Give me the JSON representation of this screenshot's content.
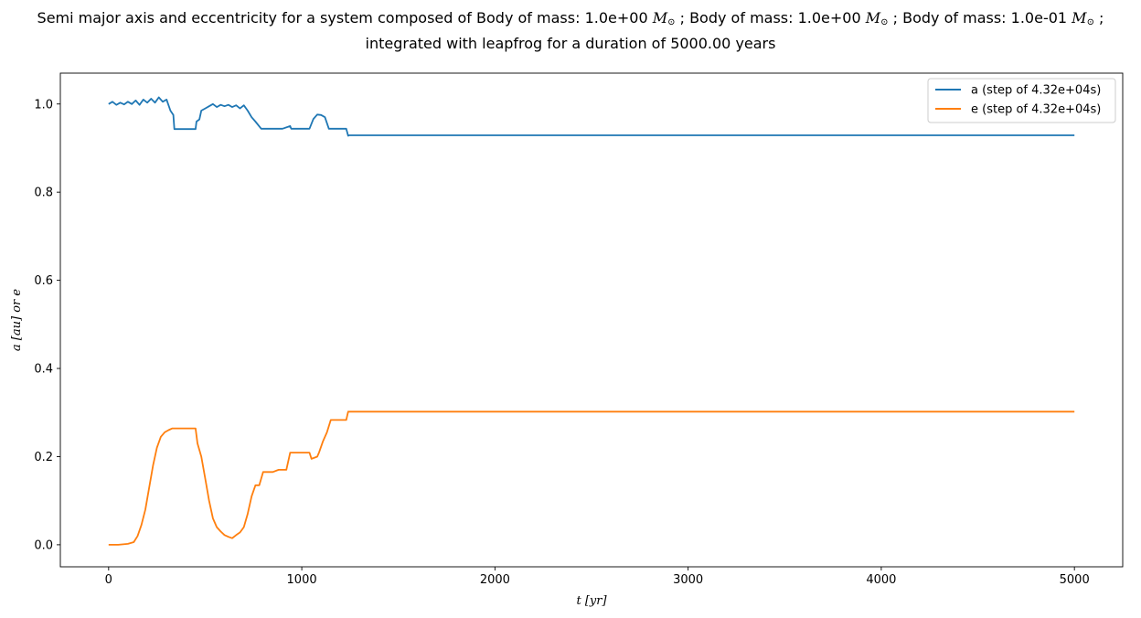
{
  "chart_data": {
    "type": "line",
    "title_parts": {
      "prefix": "Semi major axis and eccentricity for a system composed of",
      "body_label": "Body of mass:",
      "masses": [
        "1.0e+00",
        "1.0e+00",
        "1.0e-01"
      ],
      "mass_unit": "M",
      "mass_unit_sub": "⊙",
      "separator": ";",
      "line2": "integrated with leapfrog for a duration of 5000.00 years"
    },
    "xlabel": "t [yr]",
    "ylabel": "a [au] or e",
    "xlim": [
      -250,
      5250
    ],
    "ylim": [
      -0.05,
      1.07
    ],
    "xticks": [
      0,
      1000,
      2000,
      3000,
      4000,
      5000
    ],
    "yticks": [
      0.0,
      0.2,
      0.4,
      0.6,
      0.8,
      1.0
    ],
    "xtick_labels": [
      "0",
      "1000",
      "2000",
      "3000",
      "4000",
      "5000"
    ],
    "ytick_labels": [
      "0.0",
      "0.2",
      "0.4",
      "0.6",
      "0.8",
      "1.0"
    ],
    "grid": false,
    "legend_position": "top-right",
    "series": [
      {
        "name": "a (step of 4.32e+04s)",
        "color": "#1f77b4",
        "x": [
          0,
          20,
          40,
          60,
          80,
          100,
          120,
          140,
          160,
          180,
          200,
          220,
          240,
          260,
          280,
          300,
          320,
          335,
          340,
          360,
          400,
          450,
          455,
          470,
          480,
          500,
          520,
          540,
          560,
          580,
          600,
          620,
          640,
          660,
          680,
          700,
          720,
          740,
          760,
          790,
          800,
          850,
          880,
          900,
          940,
          945,
          1000,
          1040,
          1060,
          1080,
          1100,
          1120,
          1140,
          1150,
          1170,
          1200,
          1230,
          1240,
          1245,
          1300,
          1500,
          2000,
          3000,
          4000,
          5000
        ],
        "y": [
          1.0,
          1.005,
          0.998,
          1.003,
          0.999,
          1.005,
          1.0,
          1.008,
          0.998,
          1.01,
          1.003,
          1.012,
          1.003,
          1.015,
          1.005,
          1.01,
          0.985,
          0.975,
          0.943,
          0.943,
          0.943,
          0.943,
          0.96,
          0.965,
          0.985,
          0.99,
          0.995,
          1.0,
          0.993,
          0.998,
          0.995,
          0.998,
          0.993,
          0.997,
          0.99,
          0.997,
          0.985,
          0.97,
          0.96,
          0.944,
          0.944,
          0.944,
          0.944,
          0.944,
          0.95,
          0.944,
          0.944,
          0.944,
          0.966,
          0.976,
          0.975,
          0.97,
          0.944,
          0.944,
          0.944,
          0.944,
          0.944,
          0.928,
          0.929,
          0.929,
          0.929,
          0.929,
          0.929,
          0.929,
          0.929
        ]
      },
      {
        "name": "e (step of 4.32e+04s)",
        "color": "#ff7f0e",
        "x": [
          0,
          50,
          100,
          130,
          150,
          170,
          190,
          210,
          230,
          250,
          270,
          290,
          310,
          330,
          340,
          400,
          450,
          460,
          480,
          500,
          520,
          540,
          560,
          580,
          600,
          620,
          640,
          660,
          680,
          700,
          720,
          740,
          760,
          780,
          800,
          850,
          880,
          920,
          940,
          1000,
          1040,
          1050,
          1080,
          1090,
          1110,
          1130,
          1150,
          1200,
          1230,
          1240,
          1300,
          1500,
          2000,
          3000,
          4000,
          5000
        ],
        "y": [
          0.0,
          0.0,
          0.002,
          0.006,
          0.02,
          0.045,
          0.08,
          0.13,
          0.18,
          0.22,
          0.245,
          0.255,
          0.26,
          0.264,
          0.264,
          0.264,
          0.264,
          0.23,
          0.2,
          0.15,
          0.1,
          0.06,
          0.04,
          0.03,
          0.022,
          0.018,
          0.015,
          0.022,
          0.028,
          0.04,
          0.07,
          0.11,
          0.135,
          0.135,
          0.165,
          0.165,
          0.17,
          0.17,
          0.209,
          0.209,
          0.209,
          0.195,
          0.2,
          0.21,
          0.235,
          0.255,
          0.283,
          0.283,
          0.283,
          0.302,
          0.302,
          0.302,
          0.302,
          0.302,
          0.302,
          0.302
        ]
      }
    ]
  }
}
